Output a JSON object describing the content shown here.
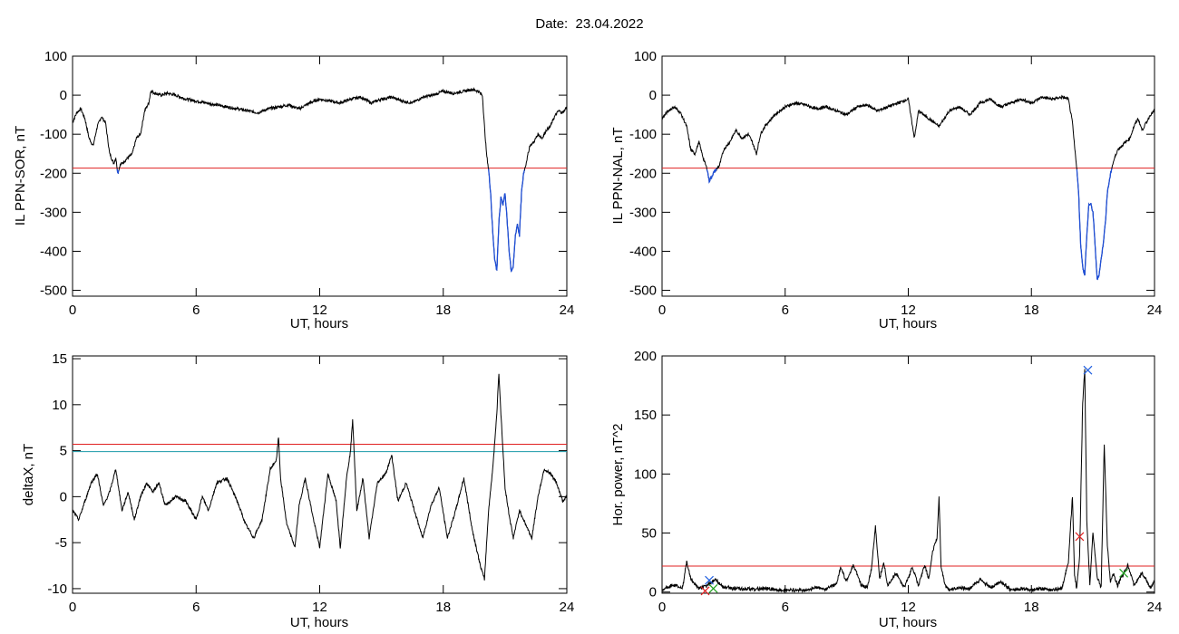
{
  "page": {
    "title": "Date:  23.04.2022"
  },
  "colors": {
    "frame": "#000000",
    "trace": "#000000",
    "highlight": "#1f4fd8",
    "threshold_red": "#e02020",
    "threshold_teal": "#1a9aa8",
    "marker_blue": "#2060e0",
    "marker_red": "#e02020",
    "marker_green": "#20a020"
  },
  "chart_data": [
    {
      "type": "line",
      "id": "sor",
      "title": "",
      "xlabel": "UT, hours",
      "ylabel": "IL PPN-SOR, nT",
      "xlim": [
        0,
        24
      ],
      "ylim": [
        -515,
        100
      ],
      "xticks": [
        0,
        6,
        12,
        18,
        24
      ],
      "yticks": [
        100,
        0,
        -100,
        -200,
        -300,
        -400,
        -500
      ],
      "thresholds": [
        {
          "value": -187,
          "color": "#e02020"
        }
      ],
      "highlight_below": -187,
      "series": [
        {
          "x": [
            0,
            0.2,
            0.4,
            0.6,
            0.8,
            1.0,
            1.2,
            1.4,
            1.6,
            1.8,
            2.0,
            2.1,
            2.2,
            2.3,
            2.5,
            2.7,
            2.9,
            3.1,
            3.3,
            3.5,
            3.7,
            3.8,
            4.0,
            4.3,
            4.6,
            5.0,
            5.5,
            6.0,
            6.5,
            7.0,
            7.5,
            8.0,
            8.5,
            9.0,
            9.5,
            10.0,
            10.5,
            11.0,
            11.5,
            12.0,
            12.5,
            13.0,
            13.5,
            14.0,
            14.5,
            15.0,
            15.5,
            16.0,
            16.5,
            17.0,
            17.5,
            18.0,
            18.5,
            19.0,
            19.4,
            19.7,
            19.9,
            20.0,
            20.1,
            20.2,
            20.3,
            20.4,
            20.5,
            20.6,
            20.7,
            20.8,
            20.9,
            21.0,
            21.1,
            21.2,
            21.3,
            21.4,
            21.5,
            21.6,
            21.7,
            21.8,
            21.9,
            22.0,
            22.2,
            22.4,
            22.6,
            22.8,
            23.0,
            23.2,
            23.4,
            23.6,
            23.8,
            24.0
          ],
          "y": [
            -70,
            -45,
            -35,
            -60,
            -110,
            -130,
            -80,
            -55,
            -70,
            -150,
            -175,
            -160,
            -200,
            -180,
            -170,
            -160,
            -150,
            -110,
            -100,
            -40,
            -20,
            10,
            5,
            0,
            5,
            0,
            -10,
            -15,
            -20,
            -25,
            -30,
            -35,
            -40,
            -45,
            -35,
            -30,
            -25,
            -35,
            -20,
            -10,
            -15,
            -20,
            -10,
            -5,
            -20,
            -10,
            -5,
            -15,
            -20,
            -5,
            0,
            10,
            5,
            10,
            15,
            10,
            0,
            -80,
            -150,
            -190,
            -250,
            -350,
            -420,
            -450,
            -330,
            -260,
            -280,
            -250,
            -320,
            -400,
            -450,
            -440,
            -360,
            -330,
            -360,
            -250,
            -200,
            -180,
            -130,
            -120,
            -100,
            -110,
            -90,
            -80,
            -55,
            -40,
            -45,
            -30
          ]
        }
      ]
    },
    {
      "type": "line",
      "id": "nal",
      "title": "",
      "xlabel": "UT, hours",
      "ylabel": "IL PPN-NAL, nT",
      "xlim": [
        0,
        24
      ],
      "ylim": [
        -515,
        100
      ],
      "xticks": [
        0,
        6,
        12,
        18,
        24
      ],
      "yticks": [
        100,
        0,
        -100,
        -200,
        -300,
        -400,
        -500
      ],
      "thresholds": [
        {
          "value": -187,
          "color": "#e02020"
        }
      ],
      "highlight_below": -187,
      "series": [
        {
          "x": [
            0,
            0.3,
            0.6,
            0.9,
            1.2,
            1.4,
            1.6,
            1.8,
            2.0,
            2.2,
            2.3,
            2.5,
            2.8,
            3.0,
            3.3,
            3.6,
            3.9,
            4.2,
            4.4,
            4.6,
            4.8,
            5.0,
            5.5,
            6.0,
            6.5,
            7.0,
            7.5,
            8.0,
            8.5,
            9.0,
            9.5,
            10.0,
            10.5,
            11.0,
            11.5,
            12.0,
            12.3,
            12.5,
            13.0,
            13.5,
            14.0,
            14.5,
            15.0,
            15.5,
            16.0,
            16.5,
            17.0,
            17.5,
            18.0,
            18.5,
            19.0,
            19.5,
            19.8,
            20.0,
            20.1,
            20.2,
            20.3,
            20.4,
            20.5,
            20.6,
            20.7,
            20.8,
            20.9,
            21.0,
            21.1,
            21.2,
            21.3,
            21.4,
            21.5,
            21.6,
            21.7,
            21.8,
            21.9,
            22.0,
            22.2,
            22.4,
            22.6,
            22.8,
            23.0,
            23.2,
            23.4,
            23.6,
            23.8,
            24.0
          ],
          "y": [
            -60,
            -40,
            -30,
            -45,
            -80,
            -140,
            -150,
            -120,
            -160,
            -190,
            -220,
            -200,
            -180,
            -140,
            -120,
            -90,
            -110,
            -100,
            -120,
            -150,
            -100,
            -80,
            -50,
            -30,
            -20,
            -25,
            -35,
            -30,
            -40,
            -50,
            -30,
            -25,
            -40,
            -30,
            -20,
            -10,
            -110,
            -40,
            -60,
            -80,
            -40,
            -30,
            -50,
            -20,
            -10,
            -30,
            -20,
            -10,
            -20,
            -5,
            -10,
            -5,
            -10,
            -70,
            -130,
            -180,
            -250,
            -380,
            -440,
            -460,
            -360,
            -280,
            -280,
            -300,
            -380,
            -470,
            -460,
            -420,
            -380,
            -330,
            -250,
            -220,
            -190,
            -170,
            -140,
            -130,
            -120,
            -110,
            -80,
            -60,
            -90,
            -70,
            -50,
            -40
          ]
        }
      ]
    },
    {
      "type": "line",
      "id": "deltax",
      "title": "",
      "xlabel": "UT, hours",
      "ylabel": "deltaX, nT",
      "xlim": [
        0,
        24
      ],
      "ylim": [
        -10.5,
        15.3
      ],
      "xticks": [
        0,
        6,
        12,
        18,
        24
      ],
      "yticks": [
        15,
        10,
        5,
        0,
        -5,
        -10
      ],
      "thresholds": [
        {
          "value": 5.7,
          "color": "#e02020"
        },
        {
          "value": 4.9,
          "color": "#1a9aa8"
        }
      ],
      "series": [
        {
          "x": [
            0,
            0.3,
            0.6,
            0.9,
            1.2,
            1.5,
            1.8,
            2.1,
            2.4,
            2.7,
            3.0,
            3.3,
            3.6,
            3.9,
            4.2,
            4.5,
            5.0,
            5.5,
            6.0,
            6.3,
            6.6,
            7.0,
            7.5,
            8.0,
            8.4,
            8.8,
            9.2,
            9.6,
            9.9,
            10.0,
            10.1,
            10.4,
            10.8,
            11.0,
            11.3,
            11.7,
            12.0,
            12.4,
            12.8,
            13.0,
            13.3,
            13.5,
            13.6,
            13.8,
            14.1,
            14.4,
            14.8,
            15.2,
            15.5,
            15.8,
            16.2,
            16.6,
            17.0,
            17.4,
            17.8,
            18.2,
            18.6,
            19.0,
            19.4,
            19.8,
            20.0,
            20.2,
            20.4,
            20.6,
            20.7,
            20.8,
            21.0,
            21.2,
            21.4,
            21.7,
            22.0,
            22.3,
            22.6,
            22.9,
            23.2,
            23.5,
            23.8,
            24.0
          ],
          "y": [
            -1.5,
            -2.5,
            -0.5,
            1.5,
            2.5,
            -1.0,
            0.5,
            3.0,
            -1.5,
            0.5,
            -2.5,
            0.0,
            1.5,
            0.5,
            1.5,
            -1.0,
            0.0,
            -0.5,
            -2.5,
            0.0,
            -1.5,
            1.5,
            2.0,
            -0.5,
            -3.0,
            -4.5,
            -2.5,
            3.0,
            4.0,
            6.5,
            2.0,
            -3.0,
            -5.5,
            -1.0,
            2.0,
            -2.5,
            -5.5,
            2.5,
            -0.5,
            -5.5,
            2.0,
            5.0,
            8.5,
            -1.5,
            2.0,
            -4.5,
            1.5,
            2.5,
            4.5,
            -0.5,
            1.5,
            -1.5,
            -4.5,
            -1.0,
            1.0,
            -4.5,
            -1.5,
            2.0,
            -3.5,
            -7.5,
            -9.0,
            -1.5,
            3.0,
            9.0,
            13.5,
            9.0,
            1.0,
            -2.0,
            -4.5,
            -1.5,
            -3.0,
            -4.5,
            0.0,
            3.0,
            2.5,
            1.5,
            -0.5,
            0.0
          ]
        }
      ]
    },
    {
      "type": "line",
      "id": "power",
      "title": "",
      "xlabel": "UT, hours",
      "ylabel": "Hor. power, nT^2",
      "xlim": [
        0,
        24
      ],
      "ylim": [
        -1,
        200
      ],
      "xticks": [
        0,
        6,
        12,
        18,
        24
      ],
      "yticks": [
        200,
        150,
        100,
        50,
        0
      ],
      "thresholds": [
        {
          "value": 22,
          "color": "#e02020"
        }
      ],
      "series": [
        {
          "x": [
            0,
            0.5,
            1.0,
            1.2,
            1.4,
            1.8,
            2.2,
            2.6,
            3.0,
            4.0,
            5.0,
            6.0,
            7.0,
            7.5,
            8.0,
            8.5,
            8.7,
            9.0,
            9.3,
            9.5,
            9.7,
            10.0,
            10.2,
            10.4,
            10.6,
            10.8,
            11.0,
            11.4,
            11.8,
            12.2,
            12.5,
            12.8,
            13.0,
            13.2,
            13.4,
            13.5,
            13.6,
            13.8,
            14.0,
            14.5,
            15.0,
            15.5,
            16.0,
            16.5,
            17.0,
            17.5,
            18.0,
            18.5,
            19.0,
            19.5,
            19.8,
            20.0,
            20.1,
            20.2,
            20.35,
            20.5,
            20.6,
            20.7,
            20.85,
            21.0,
            21.2,
            21.4,
            21.55,
            21.7,
            21.85,
            22.0,
            22.2,
            22.4,
            22.7,
            23.0,
            23.4,
            23.8,
            24.0
          ],
          "y": [
            1,
            5,
            3,
            25,
            10,
            2,
            5,
            10,
            3,
            2,
            2,
            1,
            1,
            3,
            2,
            6,
            20,
            8,
            22,
            15,
            5,
            3,
            18,
            55,
            10,
            25,
            5,
            15,
            3,
            20,
            5,
            22,
            10,
            35,
            45,
            80,
            20,
            5,
            1,
            3,
            2,
            10,
            3,
            8,
            1,
            2,
            1,
            2,
            1,
            3,
            25,
            80,
            15,
            2,
            30,
            160,
            188,
            60,
            5,
            50,
            12,
            3,
            125,
            40,
            8,
            15,
            5,
            12,
            22,
            5,
            15,
            3,
            8
          ]
        }
      ],
      "markers": [
        {
          "x": 2.3,
          "y": 10,
          "color": "#2060e0"
        },
        {
          "x": 2.1,
          "y": 1,
          "color": "#e02020"
        },
        {
          "x": 2.5,
          "y": 3,
          "color": "#20a020"
        },
        {
          "x": 20.35,
          "y": 47,
          "color": "#e02020"
        },
        {
          "x": 20.75,
          "y": 188,
          "color": "#2060e0"
        },
        {
          "x": 22.5,
          "y": 16,
          "color": "#20a020"
        }
      ]
    }
  ]
}
